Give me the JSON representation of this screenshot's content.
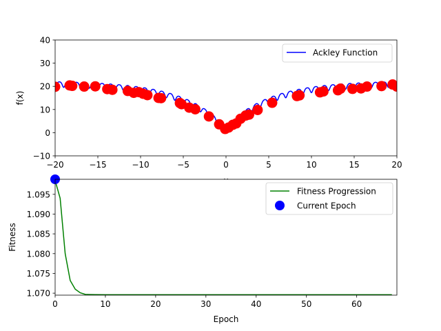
{
  "chart_data": [
    {
      "type": "line",
      "xlabel": "x",
      "ylabel": "f(x)",
      "xlim": [
        -20,
        20
      ],
      "ylim": [
        -10,
        40
      ],
      "xticks": [
        -20,
        -15,
        -10,
        -5,
        0,
        5,
        10,
        15,
        20
      ],
      "yticks": [
        -10,
        0,
        10,
        20,
        30,
        40
      ],
      "xtick_labels": [
        "−20",
        "−15",
        "−10",
        "−5",
        "0",
        "5",
        "10",
        "15",
        "20"
      ],
      "ytick_labels": [
        "−10",
        "0",
        "10",
        "20",
        "30",
        "40"
      ],
      "legend_position": "top-right",
      "series": [
        {
          "name": "Ackley Function",
          "kind": "line",
          "color": "#0000ff",
          "function": "ackley",
          "domain": [
            -20,
            20
          ]
        },
        {
          "kind": "scatter",
          "color": "#ff0000",
          "x": [
            -20.0,
            -18.3,
            -18.0,
            -16.6,
            -15.3,
            -13.9,
            -13.3,
            -11.5,
            -10.8,
            -10.2,
            -9.7,
            -9.2,
            -7.9,
            -7.6,
            -5.4,
            -5.2,
            -4.3,
            -3.6,
            -2.0,
            -0.8,
            -0.1,
            0.3,
            0.8,
            1.2,
            1.7,
            2.3,
            2.7,
            3.7,
            5.4,
            8.3,
            8.6,
            11.0,
            11.4,
            13.1,
            13.4,
            14.8,
            15.8,
            16.5,
            18.2,
            19.5,
            20.0
          ],
          "y": [
            19.8,
            20.4,
            20.2,
            19.9,
            20.0,
            18.8,
            18.5,
            18.0,
            17.2,
            17.5,
            16.8,
            16.2,
            15.0,
            14.9,
            12.8,
            12.3,
            10.8,
            10.1,
            7.0,
            3.6,
            1.6,
            2.2,
            3.4,
            4.0,
            6.0,
            7.4,
            7.8,
            9.8,
            12.9,
            15.8,
            16.1,
            17.4,
            17.8,
            18.3,
            19.0,
            18.9,
            19.1,
            19.9,
            20.1,
            20.8,
            19.9
          ]
        }
      ]
    },
    {
      "type": "line",
      "xlabel": "Epoch",
      "ylabel": "Fitness",
      "xlim": [
        0,
        68
      ],
      "ylim": [
        1.0695,
        1.0988
      ],
      "xticks": [
        0,
        10,
        20,
        30,
        40,
        50,
        60
      ],
      "yticks": [
        1.07,
        1.075,
        1.08,
        1.085,
        1.09,
        1.095
      ],
      "xtick_labels": [
        "0",
        "10",
        "20",
        "30",
        "40",
        "50",
        "60"
      ],
      "ytick_labels": [
        "1.070",
        "1.075",
        "1.080",
        "1.085",
        "1.090",
        "1.095"
      ],
      "legend_position": "top-right",
      "series": [
        {
          "name": "Fitness Progression",
          "kind": "line",
          "color": "#008000",
          "x": [
            0,
            1,
            2,
            3,
            4,
            5,
            6,
            7,
            8,
            10,
            20,
            30,
            40,
            50,
            60,
            67
          ],
          "y": [
            1.0985,
            1.094,
            1.08,
            1.0732,
            1.071,
            1.0701,
            1.0697,
            1.06965,
            1.06962,
            1.0696,
            1.0696,
            1.0696,
            1.0696,
            1.0696,
            1.0696,
            1.0696
          ]
        },
        {
          "name": "Current Epoch",
          "kind": "scatter",
          "color": "#0000ff",
          "x": [
            0
          ],
          "y": [
            1.0988
          ]
        }
      ]
    }
  ]
}
